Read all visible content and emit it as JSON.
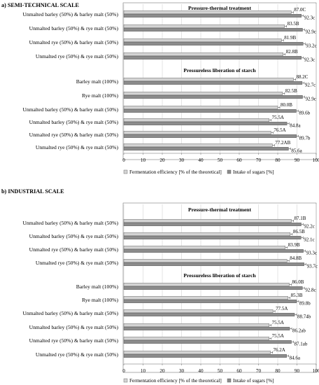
{
  "colors": {
    "fermentation": "#d4d4d4",
    "sugars": "#8c8c8c",
    "bar_border": "#555555",
    "grid": "#c8c8c8"
  },
  "chart_data": [
    {
      "type": "bar",
      "orientation": "horizontal",
      "section_title": "a) SEMI-TECHNICAL  SCALE",
      "xlim": [
        0,
        100
      ],
      "xticks": [
        "0",
        "10",
        "20",
        "30",
        "40",
        "50",
        "60",
        "70",
        "80",
        "90",
        "100"
      ],
      "grid": true,
      "legend": {
        "placement": "bottom",
        "entries": [
          "Fermentation efficiency [% of the theoretical]",
          "Intake of sugars [%]"
        ]
      },
      "groups": [
        {
          "title": "Pressure-thermal treatment",
          "categories": [
            "Unmalted barley (50%) & barley malt (50%)",
            "Unmalted barley (50%) & rye malt (50%)",
            "Unmalted rye (50%) & barley malt (50%)",
            "Unmalted rye (50%) & rye malt (50%)"
          ],
          "series": [
            {
              "name": "Fermentation efficiency [% of the theoretical]",
              "values": [
                87.0,
                83.5,
                81.9,
                82.8
              ],
              "labels": [
                "87.0C",
                "83.5B",
                "81.9B",
                "82.8B"
              ]
            },
            {
              "name": "Intake of sugars [%]",
              "values": [
                92.3,
                92.9,
                93.2,
                92.3
              ],
              "labels": [
                "92.3c",
                "92.9c",
                "93.2c",
                "92.3c"
              ]
            }
          ]
        },
        {
          "title": "Pressureless liberation of starch",
          "categories": [
            "Barley malt (100%)",
            "Rye malt (100%)",
            "Unmalted barley (50%) & barley malt (50%)",
            "Unmalted barley (50%) & rye malt (50%)",
            "Unmalted rye (50%) & barley malt (50%)",
            "Unmalted rye (50%) & rye malt (50%)"
          ],
          "series": [
            {
              "name": "Fermentation efficiency [% of the theoretical]",
              "values": [
                88.2,
                82.5,
                80.0,
                75.5,
                76.5,
                77.2
              ],
              "labels": [
                "88.2C",
                "82.5B",
                "80.0B",
                "75.5A",
                "76.5A",
                "77.2AB"
              ]
            },
            {
              "name": "Intake of sugars [%]",
              "values": [
                92.7,
                92.9,
                89.6,
                84.8,
                89.7,
                85.6
              ],
              "labels": [
                "92.7c",
                "92.9c",
                "89.6b",
                "84.8a",
                "89.7b",
                "85.6a"
              ]
            }
          ]
        }
      ]
    },
    {
      "type": "bar",
      "orientation": "horizontal",
      "section_title": "b) INDUSTRIAL SCALE",
      "xlim": [
        0,
        100
      ],
      "xticks": [
        "0",
        "10",
        "20",
        "30",
        "40",
        "50",
        "60",
        "70",
        "80",
        "90",
        "100"
      ],
      "grid": true,
      "legend": {
        "placement": "bottom",
        "entries": [
          "Fermentation efficiency [% of the theoretical]",
          "Intake of sugars [%]"
        ]
      },
      "groups": [
        {
          "title": "Pressure-thermal treatment",
          "categories": [
            "Unmalted barley (50%) & barley malt (50%)",
            "Unmalted barley (50%) & rye malt (50%)",
            "Unmalted rye (50%) & barley malt (50%)",
            "Unmalted rye (50%) & rye malt (50%)"
          ],
          "series": [
            {
              "name": "Fermentation efficiency [% of the theoretical]",
              "values": [
                87.1,
                86.5,
                83.9,
                84.8
              ],
              "labels": [
                "87.1B",
                "86.5B",
                "83.9B",
                "84.8B"
              ]
            },
            {
              "name": "Intake of sugars [%]",
              "values": [
                92.2,
                92.1,
                93.3,
                93.7
              ],
              "labels": [
                "92.2c",
                "92.1c",
                "93.3c",
                "93.7c"
              ]
            }
          ]
        },
        {
          "title": "Pressureless liberation of starch",
          "categories": [
            "Barley malt (100%)",
            "Rye malt (100%)",
            "Unmalted barley (50%) & barley malt (50%)",
            "Unmalted barley (50%) & rye malt (50%)",
            "Unmalted rye (50%) & barley malt (50%)",
            "Unmalted rye (50%) & rye malt (50%)"
          ],
          "series": [
            {
              "name": "Fermentation efficiency [% of the theoretical]",
              "values": [
                86.0,
                85.3,
                77.5,
                75.5,
                75.5,
                76.2
              ],
              "labels": [
                "86.0B",
                "85.3B",
                "77.5A",
                "75.5A",
                "75.5A",
                "76.2A"
              ]
            },
            {
              "name": "Intake of sugars [%]",
              "values": [
                92.8,
                89.8,
                88.74,
                86.2,
                87.1,
                84.6
              ],
              "labels": [
                "92.8c",
                "89.8b",
                "88.74b",
                "86.2ab",
                "87.1ab",
                "84.6a"
              ]
            }
          ]
        }
      ]
    }
  ]
}
